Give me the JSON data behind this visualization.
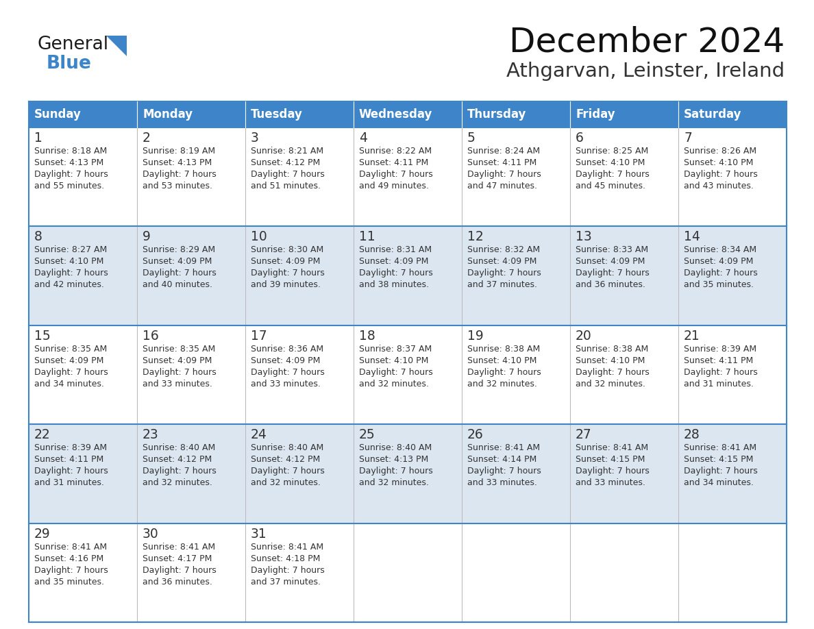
{
  "title": "December 2024",
  "subtitle": "Athgarvan, Leinster, Ireland",
  "header_color": "#3d85c8",
  "header_text_color": "#ffffff",
  "day_names": [
    "Sunday",
    "Monday",
    "Tuesday",
    "Wednesday",
    "Thursday",
    "Friday",
    "Saturday"
  ],
  "alt_row_color": "#dce6f1",
  "white_row_color": "#ffffff",
  "border_color": "#3d85c8",
  "text_color": "#333333",
  "days": [
    {
      "day": 1,
      "col": 0,
      "row": 0,
      "sunrise": "8:18 AM",
      "sunset": "4:13 PM",
      "daylight_min": "55"
    },
    {
      "day": 2,
      "col": 1,
      "row": 0,
      "sunrise": "8:19 AM",
      "sunset": "4:13 PM",
      "daylight_min": "53"
    },
    {
      "day": 3,
      "col": 2,
      "row": 0,
      "sunrise": "8:21 AM",
      "sunset": "4:12 PM",
      "daylight_min": "51"
    },
    {
      "day": 4,
      "col": 3,
      "row": 0,
      "sunrise": "8:22 AM",
      "sunset": "4:11 PM",
      "daylight_min": "49"
    },
    {
      "day": 5,
      "col": 4,
      "row": 0,
      "sunrise": "8:24 AM",
      "sunset": "4:11 PM",
      "daylight_min": "47"
    },
    {
      "day": 6,
      "col": 5,
      "row": 0,
      "sunrise": "8:25 AM",
      "sunset": "4:10 PM",
      "daylight_min": "45"
    },
    {
      "day": 7,
      "col": 6,
      "row": 0,
      "sunrise": "8:26 AM",
      "sunset": "4:10 PM",
      "daylight_min": "43"
    },
    {
      "day": 8,
      "col": 0,
      "row": 1,
      "sunrise": "8:27 AM",
      "sunset": "4:10 PM",
      "daylight_min": "42"
    },
    {
      "day": 9,
      "col": 1,
      "row": 1,
      "sunrise": "8:29 AM",
      "sunset": "4:09 PM",
      "daylight_min": "40"
    },
    {
      "day": 10,
      "col": 2,
      "row": 1,
      "sunrise": "8:30 AM",
      "sunset": "4:09 PM",
      "daylight_min": "39"
    },
    {
      "day": 11,
      "col": 3,
      "row": 1,
      "sunrise": "8:31 AM",
      "sunset": "4:09 PM",
      "daylight_min": "38"
    },
    {
      "day": 12,
      "col": 4,
      "row": 1,
      "sunrise": "8:32 AM",
      "sunset": "4:09 PM",
      "daylight_min": "37"
    },
    {
      "day": 13,
      "col": 5,
      "row": 1,
      "sunrise": "8:33 AM",
      "sunset": "4:09 PM",
      "daylight_min": "36"
    },
    {
      "day": 14,
      "col": 6,
      "row": 1,
      "sunrise": "8:34 AM",
      "sunset": "4:09 PM",
      "daylight_min": "35"
    },
    {
      "day": 15,
      "col": 0,
      "row": 2,
      "sunrise": "8:35 AM",
      "sunset": "4:09 PM",
      "daylight_min": "34"
    },
    {
      "day": 16,
      "col": 1,
      "row": 2,
      "sunrise": "8:35 AM",
      "sunset": "4:09 PM",
      "daylight_min": "33"
    },
    {
      "day": 17,
      "col": 2,
      "row": 2,
      "sunrise": "8:36 AM",
      "sunset": "4:09 PM",
      "daylight_min": "33"
    },
    {
      "day": 18,
      "col": 3,
      "row": 2,
      "sunrise": "8:37 AM",
      "sunset": "4:10 PM",
      "daylight_min": "32"
    },
    {
      "day": 19,
      "col": 4,
      "row": 2,
      "sunrise": "8:38 AM",
      "sunset": "4:10 PM",
      "daylight_min": "32"
    },
    {
      "day": 20,
      "col": 5,
      "row": 2,
      "sunrise": "8:38 AM",
      "sunset": "4:10 PM",
      "daylight_min": "32"
    },
    {
      "day": 21,
      "col": 6,
      "row": 2,
      "sunrise": "8:39 AM",
      "sunset": "4:11 PM",
      "daylight_min": "31"
    },
    {
      "day": 22,
      "col": 0,
      "row": 3,
      "sunrise": "8:39 AM",
      "sunset": "4:11 PM",
      "daylight_min": "31"
    },
    {
      "day": 23,
      "col": 1,
      "row": 3,
      "sunrise": "8:40 AM",
      "sunset": "4:12 PM",
      "daylight_min": "32"
    },
    {
      "day": 24,
      "col": 2,
      "row": 3,
      "sunrise": "8:40 AM",
      "sunset": "4:12 PM",
      "daylight_min": "32"
    },
    {
      "day": 25,
      "col": 3,
      "row": 3,
      "sunrise": "8:40 AM",
      "sunset": "4:13 PM",
      "daylight_min": "32"
    },
    {
      "day": 26,
      "col": 4,
      "row": 3,
      "sunrise": "8:41 AM",
      "sunset": "4:14 PM",
      "daylight_min": "33"
    },
    {
      "day": 27,
      "col": 5,
      "row": 3,
      "sunrise": "8:41 AM",
      "sunset": "4:15 PM",
      "daylight_min": "33"
    },
    {
      "day": 28,
      "col": 6,
      "row": 3,
      "sunrise": "8:41 AM",
      "sunset": "4:15 PM",
      "daylight_min": "34"
    },
    {
      "day": 29,
      "col": 0,
      "row": 4,
      "sunrise": "8:41 AM",
      "sunset": "4:16 PM",
      "daylight_min": "35"
    },
    {
      "day": 30,
      "col": 1,
      "row": 4,
      "sunrise": "8:41 AM",
      "sunset": "4:17 PM",
      "daylight_min": "36"
    },
    {
      "day": 31,
      "col": 2,
      "row": 4,
      "sunrise": "8:41 AM",
      "sunset": "4:18 PM",
      "daylight_min": "37"
    }
  ],
  "logo_general_color": "#1a1a1a",
  "logo_blue_color": "#3d85c8"
}
